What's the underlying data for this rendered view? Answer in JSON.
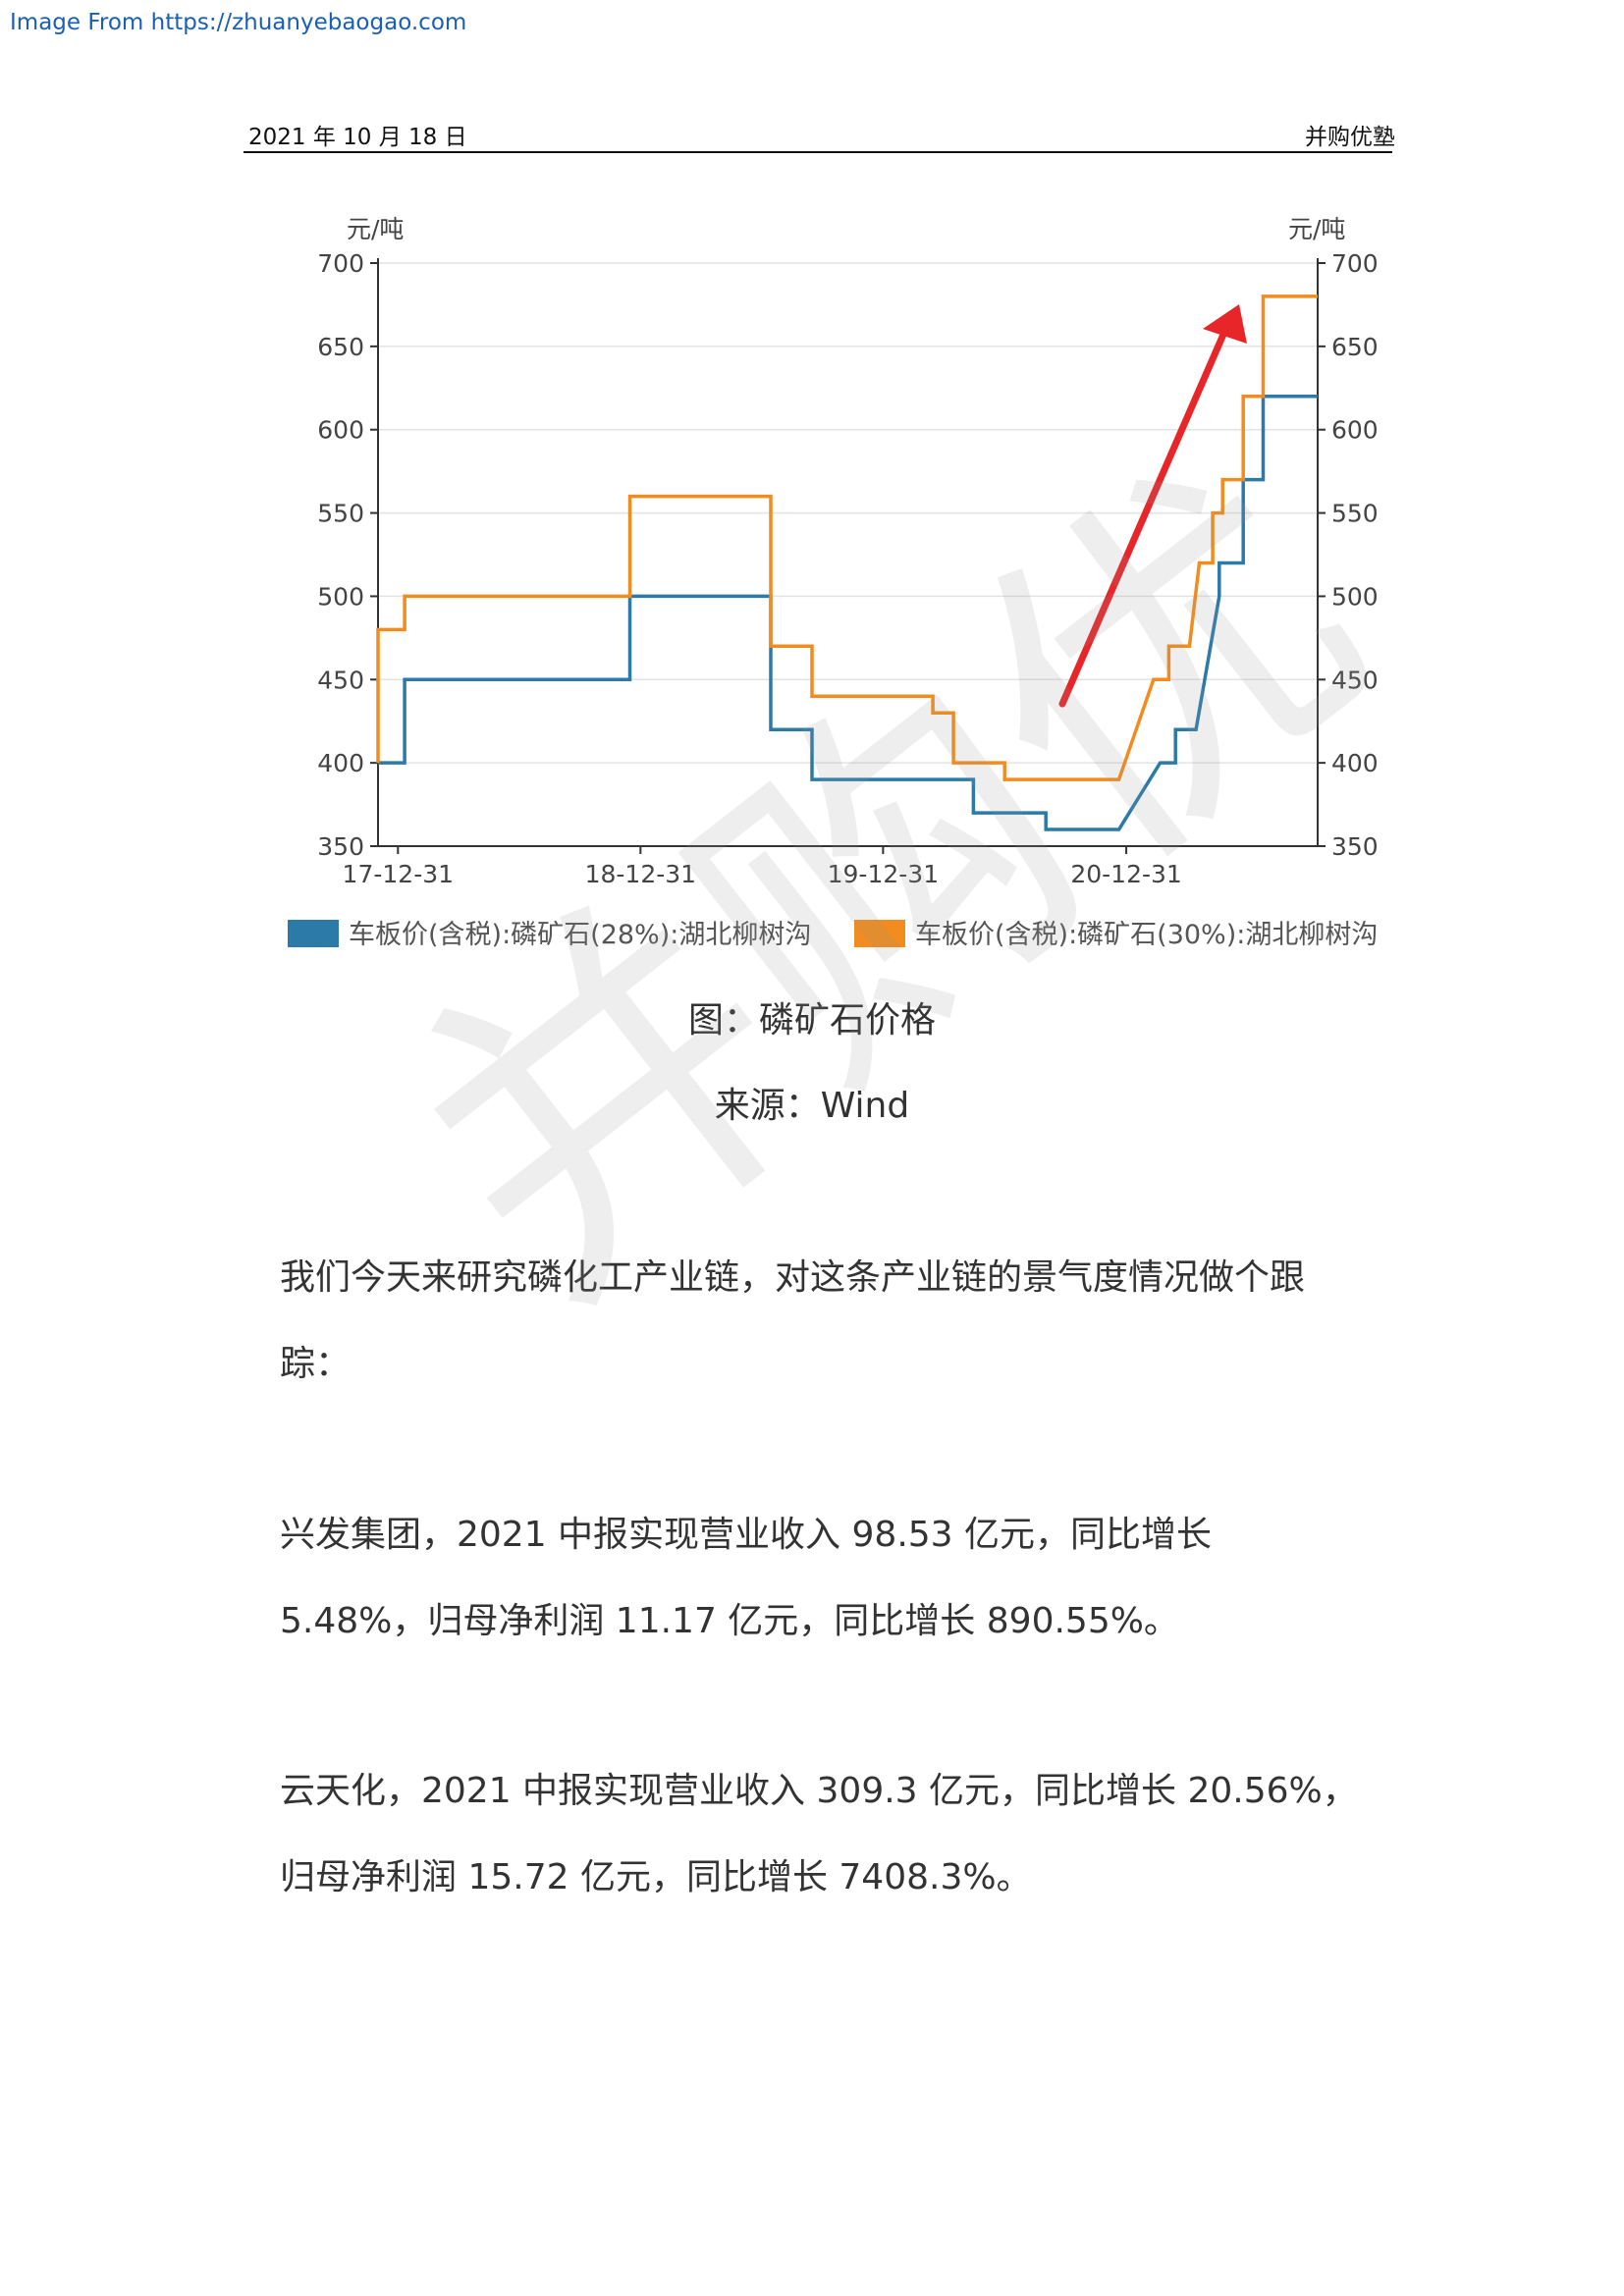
{
  "source_link": "Image From https://zhuanyebaogao.com",
  "header": {
    "date": "2021 年 10 月 18 日",
    "brand": "并购优塾"
  },
  "watermark": "并购优",
  "caption": {
    "title": "图：磷矿石价格",
    "source": "来源：Wind"
  },
  "paragraphs": [
    "我们今天来研究磷化工产业链，对这条产业链的景气度情况做个跟踪：",
    "兴发集团，2021 中报实现营业收入 98.53 亿元，同比增长 5.48%，归母净利润 11.17 亿元，同比增长 890.55%。",
    "云天化，2021 中报实现营业收入 309.3 亿元，同比增长 20.56%，归母净利润 15.72 亿元，同比增长 7408.3%。"
  ],
  "colors": {
    "series_blue": "#2b7aa8",
    "series_orange": "#f28c1e",
    "arrow": "#e8262a"
  },
  "chart_data": {
    "type": "line",
    "step": true,
    "y_unit_left": "元/吨",
    "y_unit_right": "元/吨",
    "ylim": [
      350,
      700
    ],
    "yticks": [
      350,
      400,
      450,
      500,
      550,
      600,
      650,
      700
    ],
    "x_tick_labels": [
      "17-12-31",
      "18-12-31",
      "19-12-31",
      "20-12-31"
    ],
    "x_ticks": [
      "2017-12-31",
      "2018-12-31",
      "2019-12-31",
      "2020-12-31"
    ],
    "xlim": [
      "2017-12-01",
      "2021-10-15"
    ],
    "grid": true,
    "legend_position": "bottom",
    "annotation": "red arrow pointing up-right",
    "series": [
      {
        "name": "车板价(含税):磷矿石(28%):湖北柳树沟",
        "color": "#2b7aa8",
        "points": [
          [
            "2017-12-01",
            400
          ],
          [
            "2018-01-10",
            400
          ],
          [
            "2018-01-10",
            450
          ],
          [
            "2018-12-15",
            450
          ],
          [
            "2018-12-15",
            500
          ],
          [
            "2019-07-15",
            500
          ],
          [
            "2019-07-15",
            420
          ],
          [
            "2019-09-15",
            420
          ],
          [
            "2019-09-15",
            390
          ],
          [
            "2020-05-15",
            390
          ],
          [
            "2020-05-15",
            370
          ],
          [
            "2020-09-01",
            370
          ],
          [
            "2020-09-01",
            360
          ],
          [
            "2020-12-20",
            360
          ],
          [
            "2021-02-20",
            400
          ],
          [
            "2021-03-15",
            400
          ],
          [
            "2021-03-15",
            420
          ],
          [
            "2021-04-15",
            420
          ],
          [
            "2021-05-20",
            500
          ],
          [
            "2021-05-20",
            520
          ],
          [
            "2021-06-25",
            520
          ],
          [
            "2021-06-25",
            570
          ],
          [
            "2021-07-25",
            570
          ],
          [
            "2021-07-25",
            620
          ],
          [
            "2021-10-15",
            620
          ]
        ]
      },
      {
        "name": "车板价(含税):磷矿石(30%):湖北柳树沟",
        "color": "#f28c1e",
        "points": [
          [
            "2017-12-01",
            400
          ],
          [
            "2017-12-01",
            480
          ],
          [
            "2018-01-10",
            480
          ],
          [
            "2018-01-10",
            500
          ],
          [
            "2018-12-15",
            500
          ],
          [
            "2018-12-15",
            560
          ],
          [
            "2019-07-15",
            560
          ],
          [
            "2019-07-15",
            470
          ],
          [
            "2019-09-15",
            470
          ],
          [
            "2019-09-15",
            440
          ],
          [
            "2020-03-15",
            440
          ],
          [
            "2020-03-15",
            430
          ],
          [
            "2020-04-15",
            430
          ],
          [
            "2020-04-15",
            400
          ],
          [
            "2020-07-01",
            400
          ],
          [
            "2020-07-01",
            390
          ],
          [
            "2020-12-20",
            390
          ],
          [
            "2021-02-10",
            450
          ],
          [
            "2021-03-05",
            450
          ],
          [
            "2021-03-05",
            470
          ],
          [
            "2021-04-05",
            470
          ],
          [
            "2021-04-20",
            520
          ],
          [
            "2021-05-10",
            520
          ],
          [
            "2021-05-10",
            550
          ],
          [
            "2021-05-25",
            550
          ],
          [
            "2021-05-25",
            570
          ],
          [
            "2021-06-25",
            570
          ],
          [
            "2021-06-25",
            620
          ],
          [
            "2021-07-25",
            620
          ],
          [
            "2021-07-25",
            680
          ],
          [
            "2021-10-15",
            680
          ]
        ]
      }
    ]
  }
}
